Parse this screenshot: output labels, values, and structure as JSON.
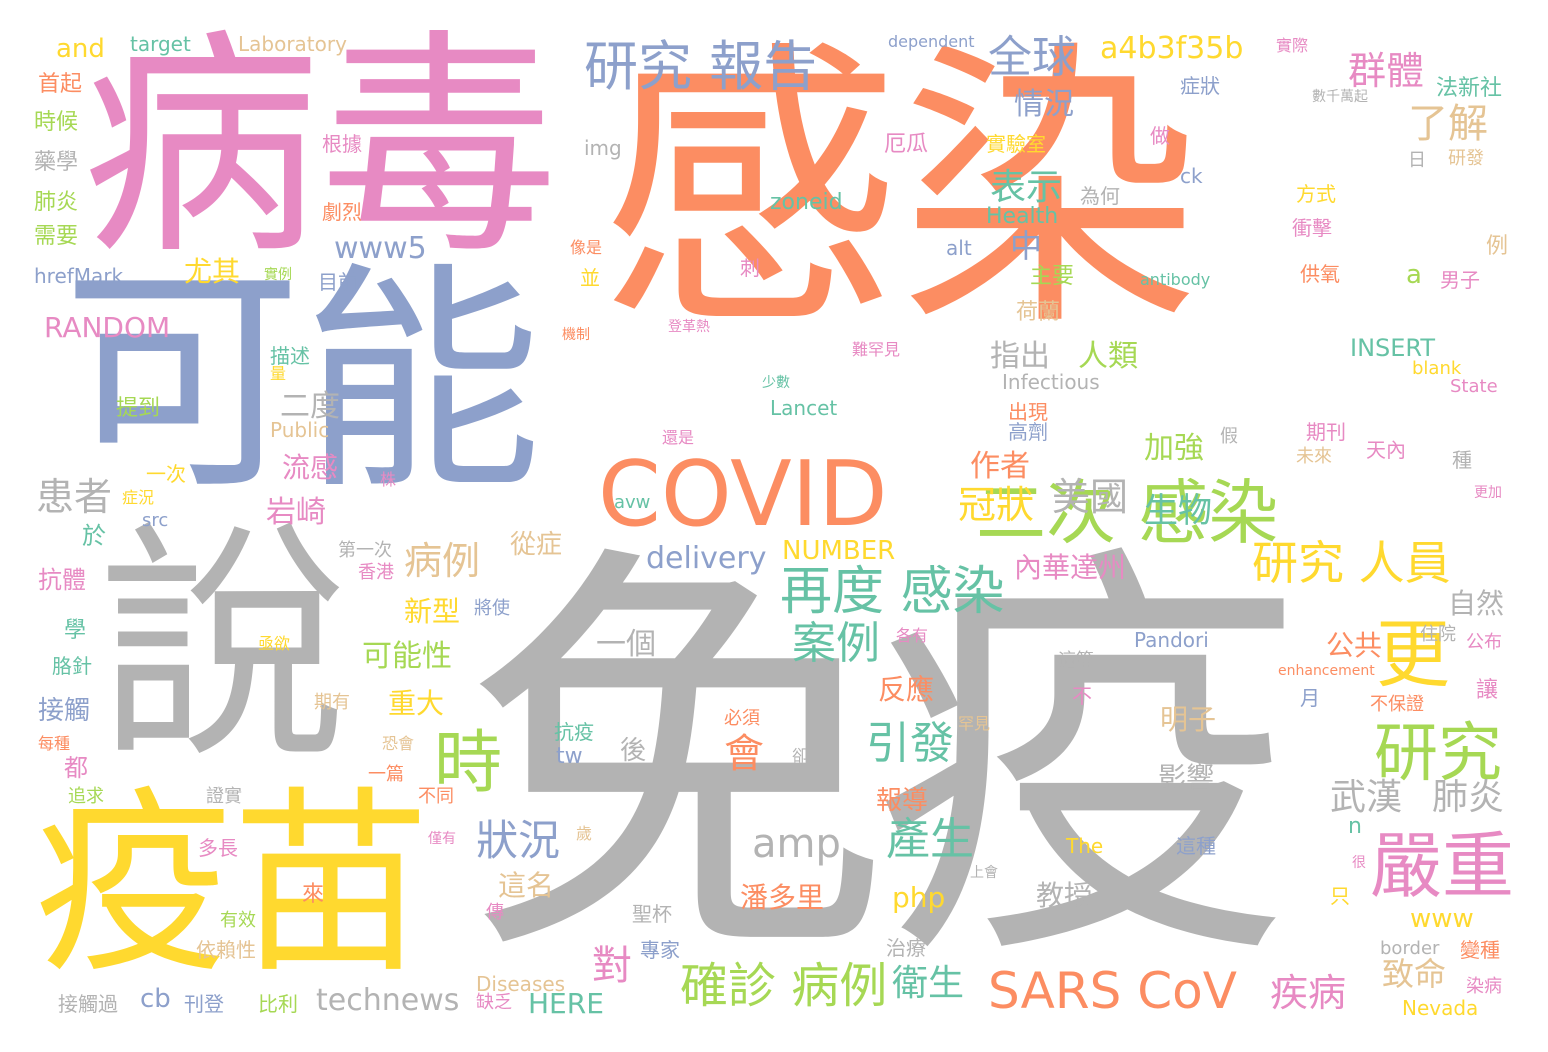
{
  "palette": [
    "#8da0cb",
    "#fc8d62",
    "#e78ac3",
    "#a6d854",
    "#ffd92f",
    "#b3b3b3",
    "#66c2a5",
    "#e5c494"
  ],
  "words": [
    {
      "text": "感染",
      "color": "#fc8d62"
    },
    {
      "text": "免疫",
      "color": "#b3b3b3"
    },
    {
      "text": "病毒",
      "color": "#e78ac3"
    },
    {
      "text": "可能",
      "color": "#8da0cb"
    },
    {
      "text": "說",
      "color": "#b3b3b3"
    },
    {
      "text": "疫苗",
      "color": "#ffd92f"
    },
    {
      "text": "COVID",
      "color": "#fc8d62"
    },
    {
      "text": "二次 感染",
      "color": "#a6d854"
    },
    {
      "text": "研究 報告",
      "color": "#8da0cb"
    },
    {
      "text": "再度 感染",
      "color": "#66c2a5"
    },
    {
      "text": "SARS CoV",
      "color": "#fc8d62"
    },
    {
      "text": "研究",
      "color": "#a6d854"
    },
    {
      "text": "時",
      "color": "#a6d854"
    },
    {
      "text": "更",
      "color": "#ffd92f"
    },
    {
      "text": "嚴重",
      "color": "#e78ac3"
    },
    {
      "text": "研究 人員",
      "color": "#ffd92f"
    },
    {
      "text": "確診 病例",
      "color": "#a6d854"
    },
    {
      "text": "全球",
      "color": "#8da0cb"
    },
    {
      "text": "a4b3f35b",
      "color": "#ffd92f"
    },
    {
      "text": "群體",
      "color": "#e78ac3"
    },
    {
      "text": "了解",
      "color": "#e5c494"
    },
    {
      "text": "案例",
      "color": "#66c2a5"
    },
    {
      "text": "引發",
      "color": "#66c2a5"
    },
    {
      "text": "產生",
      "color": "#66c2a5"
    },
    {
      "text": "狀況",
      "color": "#8da0cb"
    },
    {
      "text": "amp",
      "color": "#b3b3b3"
    },
    {
      "text": "會",
      "color": "#fc8d62"
    },
    {
      "text": "疾病",
      "color": "#e78ac3"
    },
    {
      "text": "患者",
      "color": "#b3b3b3"
    },
    {
      "text": "病例",
      "color": "#e5c494"
    },
    {
      "text": "delivery",
      "color": "#8da0cb"
    },
    {
      "text": "冠狀",
      "color": "#ffd92f"
    },
    {
      "text": "美國",
      "color": "#b3b3b3"
    },
    {
      "text": "生物",
      "color": "#66c2a5"
    },
    {
      "text": "表示",
      "color": "#66c2a5"
    },
    {
      "text": "情況",
      "color": "#8da0cb"
    },
    {
      "text": "武漢",
      "color": "#b3b3b3"
    },
    {
      "text": "肺炎",
      "color": "#b3b3b3"
    },
    {
      "text": "technews",
      "color": "#b3b3b3"
    },
    {
      "text": "衛生",
      "color": "#66c2a5"
    },
    {
      "text": "對",
      "color": "#e78ac3"
    },
    {
      "text": "致命",
      "color": "#e5c494"
    },
    {
      "text": "www5",
      "color": "#8da0cb"
    },
    {
      "text": "RANDOM",
      "color": "#e78ac3"
    },
    {
      "text": "尤其",
      "color": "#ffd92f"
    },
    {
      "text": "中",
      "color": "#8da0cb"
    },
    {
      "text": "指出",
      "color": "#b3b3b3"
    },
    {
      "text": "人類",
      "color": "#a6d854"
    },
    {
      "text": "二度",
      "color": "#b3b3b3"
    },
    {
      "text": "流感",
      "color": "#e78ac3"
    },
    {
      "text": "岩崎",
      "color": "#e78ac3"
    },
    {
      "text": "作者",
      "color": "#fc8d62"
    },
    {
      "text": "加強",
      "color": "#a6d854"
    },
    {
      "text": "內華達州",
      "color": "#e78ac3"
    },
    {
      "text": "NUMBER",
      "color": "#ffd92f"
    },
    {
      "text": "從症",
      "color": "#e5c494"
    },
    {
      "text": "新型",
      "color": "#ffd92f"
    },
    {
      "text": "可能性",
      "color": "#a6d854"
    },
    {
      "text": "重大",
      "color": "#ffd92f"
    },
    {
      "text": "一個",
      "color": "#b3b3b3"
    },
    {
      "text": "反應",
      "color": "#fc8d62"
    },
    {
      "text": "公共",
      "color": "#fc8d62"
    },
    {
      "text": "自然",
      "color": "#b3b3b3"
    },
    {
      "text": "明子",
      "color": "#e5c494"
    },
    {
      "text": "影響",
      "color": "#b3b3b3"
    },
    {
      "text": "報導",
      "color": "#fc8d62"
    },
    {
      "text": "潘多里",
      "color": "#fc8d62"
    },
    {
      "text": "php",
      "color": "#ffd92f"
    },
    {
      "text": "教授",
      "color": "#b3b3b3"
    },
    {
      "text": "這名",
      "color": "#e5c494"
    },
    {
      "text": "www",
      "color": "#ffd92f"
    },
    {
      "text": "HERE",
      "color": "#66c2a5"
    },
    {
      "text": "cb",
      "color": "#8da0cb"
    },
    {
      "text": "and",
      "color": "#ffd92f"
    },
    {
      "text": "target",
      "color": "#66c2a5"
    },
    {
      "text": "Laboratory",
      "color": "#e5c494"
    },
    {
      "text": "dependent",
      "color": "#8da0cb"
    },
    {
      "text": "實際",
      "color": "#e78ac3"
    },
    {
      "text": "法新社",
      "color": "#66c2a5"
    },
    {
      "text": "首起",
      "color": "#fc8d62"
    },
    {
      "text": "時候",
      "color": "#a6d854"
    },
    {
      "text": "藥學",
      "color": "#b3b3b3"
    },
    {
      "text": "肺炎",
      "color": "#a6d854"
    },
    {
      "text": "需要",
      "color": "#a6d854"
    },
    {
      "text": "hrefMark",
      "color": "#8da0cb"
    },
    {
      "text": "img",
      "color": "#b3b3b3"
    },
    {
      "text": "根據",
      "color": "#e78ac3"
    },
    {
      "text": "劇烈",
      "color": "#fc8d62"
    },
    {
      "text": "zoneid",
      "color": "#66c2a5"
    },
    {
      "text": "Health",
      "color": "#66c2a5"
    },
    {
      "text": "實驗室",
      "color": "#ffd92f"
    },
    {
      "text": "厄瓜",
      "color": "#e78ac3"
    },
    {
      "text": "症狀",
      "color": "#8da0cb"
    },
    {
      "text": "數千萬起",
      "color": "#b3b3b3"
    },
    {
      "text": "研發",
      "color": "#e5c494"
    },
    {
      "text": "方式",
      "color": "#ffd92f"
    },
    {
      "text": "衝擊",
      "color": "#e78ac3"
    },
    {
      "text": "ck",
      "color": "#8da0cb"
    },
    {
      "text": "為何",
      "color": "#b3b3b3"
    },
    {
      "text": "日",
      "color": "#b3b3b3"
    },
    {
      "text": "做",
      "color": "#e78ac3"
    },
    {
      "text": "例",
      "color": "#e5c494"
    },
    {
      "text": "男子",
      "color": "#e78ac3"
    },
    {
      "text": "供氧",
      "color": "#fc8d62"
    },
    {
      "text": "a",
      "color": "#a6d854"
    },
    {
      "text": "alt",
      "color": "#8da0cb"
    },
    {
      "text": "antibody",
      "color": "#66c2a5"
    },
    {
      "text": "目前",
      "color": "#8da0cb"
    },
    {
      "text": "刺",
      "color": "#e78ac3"
    },
    {
      "text": "並",
      "color": "#ffd92f"
    },
    {
      "text": "像是",
      "color": "#fc8d62"
    },
    {
      "text": "實例",
      "color": "#a6d854"
    },
    {
      "text": "主要",
      "color": "#a6d854"
    },
    {
      "text": "荷蘭",
      "color": "#e5c494"
    },
    {
      "text": "INSERT",
      "color": "#66c2a5"
    },
    {
      "text": "blank",
      "color": "#ffd92f"
    },
    {
      "text": "State",
      "color": "#e78ac3"
    },
    {
      "text": "Infectious",
      "color": "#b3b3b3"
    },
    {
      "text": "Lancet",
      "color": "#66c2a5"
    },
    {
      "text": "描述",
      "color": "#66c2a5"
    },
    {
      "text": "量",
      "color": "#ffd92f"
    },
    {
      "text": "提到",
      "color": "#a6d854"
    },
    {
      "text": "機制",
      "color": "#fc8d62"
    },
    {
      "text": "登革熱",
      "color": "#e78ac3"
    },
    {
      "text": "難罕見",
      "color": "#e78ac3"
    },
    {
      "text": "少數",
      "color": "#66c2a5"
    },
    {
      "text": "出現",
      "color": "#fc8d62"
    },
    {
      "text": "高劑",
      "color": "#8da0cb"
    },
    {
      "text": "期刊",
      "color": "#e78ac3"
    },
    {
      "text": "天內",
      "color": "#e78ac3"
    },
    {
      "text": "未來",
      "color": "#e5c494"
    },
    {
      "text": "種",
      "color": "#b3b3b3"
    },
    {
      "text": "更加",
      "color": "#e78ac3"
    },
    {
      "text": "Public",
      "color": "#e5c494"
    },
    {
      "text": "還是",
      "color": "#e78ac3"
    },
    {
      "text": "假",
      "color": "#b3b3b3"
    },
    {
      "text": "一次",
      "color": "#ffd92f"
    },
    {
      "text": "症況",
      "color": "#ffd92f"
    },
    {
      "text": "株",
      "color": "#e78ac3"
    },
    {
      "text": "avw",
      "color": "#66c2a5"
    },
    {
      "text": "src",
      "color": "#8da0cb"
    },
    {
      "text": "於",
      "color": "#66c2a5"
    },
    {
      "text": "第一次",
      "color": "#b3b3b3"
    },
    {
      "text": "香港",
      "color": "#e78ac3"
    },
    {
      "text": "將使",
      "color": "#8da0cb"
    },
    {
      "text": "抗體",
      "color": "#e78ac3"
    },
    {
      "text": "學",
      "color": "#66c2a5"
    },
    {
      "text": "胳針",
      "color": "#66c2a5"
    },
    {
      "text": "亟欲",
      "color": "#ffd92f"
    },
    {
      "text": "各有",
      "color": "#e78ac3"
    },
    {
      "text": "住院",
      "color": "#b3b3b3"
    },
    {
      "text": "Pandori",
      "color": "#8da0cb"
    },
    {
      "text": "公布",
      "color": "#e78ac3"
    },
    {
      "text": "這篇",
      "color": "#b3b3b3"
    },
    {
      "text": "enhancement",
      "color": "#fc8d62"
    },
    {
      "text": "讓",
      "color": "#e78ac3"
    },
    {
      "text": "接觸",
      "color": "#8da0cb"
    },
    {
      "text": "期有",
      "color": "#e5c494"
    },
    {
      "text": "不保證",
      "color": "#fc8d62"
    },
    {
      "text": "不",
      "color": "#e78ac3"
    },
    {
      "text": "月",
      "color": "#8da0cb"
    },
    {
      "text": "每種",
      "color": "#fc8d62"
    },
    {
      "text": "恐會",
      "color": "#e5c494"
    },
    {
      "text": "抗疫",
      "color": "#66c2a5"
    },
    {
      "text": "後",
      "color": "#b3b3b3"
    },
    {
      "text": "必須",
      "color": "#fc8d62"
    },
    {
      "text": "罕見",
      "color": "#e5c494"
    },
    {
      "text": "都",
      "color": "#e78ac3"
    },
    {
      "text": "一篇",
      "color": "#fc8d62"
    },
    {
      "text": "tw",
      "color": "#8da0cb"
    },
    {
      "text": "卻",
      "color": "#b3b3b3"
    },
    {
      "text": "追求",
      "color": "#a6d854"
    },
    {
      "text": "證實",
      "color": "#b3b3b3"
    },
    {
      "text": "不同",
      "color": "#fc8d62"
    },
    {
      "text": "n",
      "color": "#66c2a5"
    },
    {
      "text": "多長",
      "color": "#e78ac3"
    },
    {
      "text": "僅有",
      "color": "#e78ac3"
    },
    {
      "text": "歲",
      "color": "#e5c494"
    },
    {
      "text": "The",
      "color": "#ffd92f"
    },
    {
      "text": "這種",
      "color": "#8da0cb"
    },
    {
      "text": "很",
      "color": "#e78ac3"
    },
    {
      "text": "上會",
      "color": "#b3b3b3"
    },
    {
      "text": "只",
      "color": "#ffd92f"
    },
    {
      "text": "有效",
      "color": "#a6d854"
    },
    {
      "text": "來",
      "color": "#fc8d62"
    },
    {
      "text": "傳",
      "color": "#e78ac3"
    },
    {
      "text": "聖杯",
      "color": "#b3b3b3"
    },
    {
      "text": "依賴性",
      "color": "#e5c494"
    },
    {
      "text": "專家",
      "color": "#8da0cb"
    },
    {
      "text": "治療",
      "color": "#b3b3b3"
    },
    {
      "text": "border",
      "color": "#b3b3b3"
    },
    {
      "text": "變種",
      "color": "#fc8d62"
    },
    {
      "text": "染病",
      "color": "#e78ac3"
    },
    {
      "text": "Diseases",
      "color": "#e5c494"
    },
    {
      "text": "接觸過",
      "color": "#b3b3b3"
    },
    {
      "text": "刊登",
      "color": "#8da0cb"
    },
    {
      "text": "比利",
      "color": "#a6d854"
    },
    {
      "text": "缺乏",
      "color": "#e78ac3"
    },
    {
      "text": "Nevada",
      "color": "#ffd92f"
    }
  ]
}
